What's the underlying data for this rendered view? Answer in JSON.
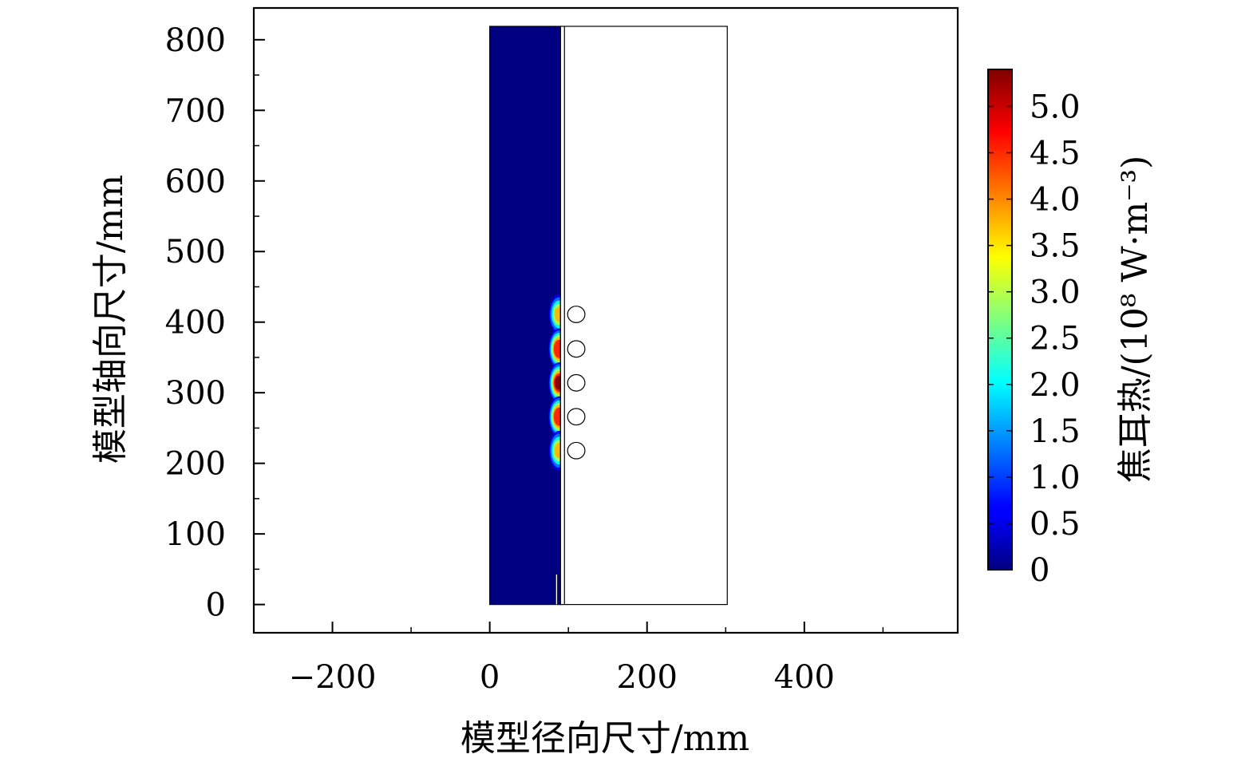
{
  "chart_data": {
    "type": "heatmap",
    "xlabel": "模型径向尺寸/mm",
    "ylabel": "模型轴向尺寸/mm",
    "xlim": [
      -300,
      595
    ],
    "ylim": [
      -40,
      845
    ],
    "x_ticks": [
      -200,
      0,
      200,
      400
    ],
    "x_tick_labels": [
      "−200",
      "0",
      "200",
      "400"
    ],
    "y_ticks": [
      0,
      100,
      200,
      300,
      400,
      500,
      600,
      700,
      800
    ],
    "y_tick_labels": [
      "0",
      "100",
      "200",
      "300",
      "400",
      "500",
      "600",
      "700",
      "800"
    ],
    "colorbar": {
      "label": "焦耳热/(10⁸ W·m⁻³)",
      "range": [
        0,
        5.4
      ],
      "ticks": [
        0,
        0.5,
        1.0,
        1.5,
        2.0,
        2.5,
        3.0,
        3.5,
        4.0,
        4.5,
        5.0
      ],
      "tick_labels": [
        "0",
        "0.5",
        "1.0",
        "1.5",
        "2.0",
        "2.5",
        "3.0",
        "3.5",
        "4.0",
        "4.5",
        "5.0"
      ],
      "colormap": "jet"
    },
    "regions": {
      "heated_domain": {
        "x": [
          0,
          90
        ],
        "y": [
          0,
          819
        ]
      },
      "outer_domain": {
        "x": [
          90,
          302
        ],
        "y": [
          0,
          819
        ]
      },
      "gap_line_x": [
        95
      ],
      "small_slot": {
        "x": [
          84,
          86
        ],
        "y": [
          0,
          43
        ]
      }
    },
    "coils": [
      {
        "x": 110,
        "y": 411
      },
      {
        "x": 110,
        "y": 362
      },
      {
        "x": 110,
        "y": 314
      },
      {
        "x": 110,
        "y": 266
      },
      {
        "x": 110,
        "y": 218
      }
    ],
    "coil_radius": 11,
    "hotspots": [
      {
        "x": 88,
        "y": 411,
        "value": 3.8
      },
      {
        "x": 88,
        "y": 362,
        "value": 5.3
      },
      {
        "x": 88,
        "y": 314,
        "value": 5.4
      },
      {
        "x": 88,
        "y": 266,
        "value": 5.3
      },
      {
        "x": 88,
        "y": 218,
        "value": 3.8
      }
    ],
    "background_value": 0,
    "colors": {
      "jet_low": "#00007f",
      "jet_high": "#7f0000"
    }
  }
}
